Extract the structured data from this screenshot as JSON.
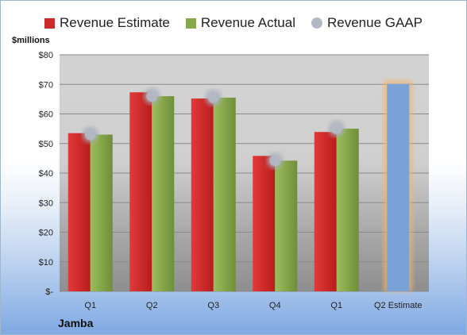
{
  "legend": {
    "estimate": "Revenue Estimate",
    "actual": "Revenue Actual",
    "gaap": "Revenue GAAP"
  },
  "colors": {
    "estimate": "#cc2a2a",
    "actual": "#86a84b",
    "gaap": "#b3b9c4",
    "forecast": "#7aa2d6",
    "forecast_glow": "#f5b36a"
  },
  "units_label": "$millions",
  "company": "Jamba",
  "chart_data": {
    "type": "bar",
    "categories": [
      "Q1",
      "Q2",
      "Q3",
      "Q4",
      "Q1",
      "Q2 Estimate"
    ],
    "series": [
      {
        "name": "Revenue Estimate",
        "values": [
          53.5,
          67.3,
          65.2,
          45.8,
          53.9,
          null
        ]
      },
      {
        "name": "Revenue Actual",
        "values": [
          53.0,
          66.0,
          65.5,
          44.2,
          55.0,
          null
        ]
      },
      {
        "name": "Revenue GAAP",
        "values": [
          53.0,
          66.0,
          65.5,
          44.2,
          55.0,
          null
        ]
      }
    ],
    "forecast": {
      "category": "Q2 Estimate",
      "value": 70.2
    },
    "ylim": [
      0,
      80
    ],
    "yticks": [
      0,
      10,
      20,
      30,
      40,
      50,
      60,
      70,
      80
    ],
    "ytick_labels": [
      "$-",
      "$10",
      "$20",
      "$30",
      "$40",
      "$50",
      "$60",
      "$70",
      "$80"
    ],
    "grid": true,
    "legend_position": "top"
  }
}
